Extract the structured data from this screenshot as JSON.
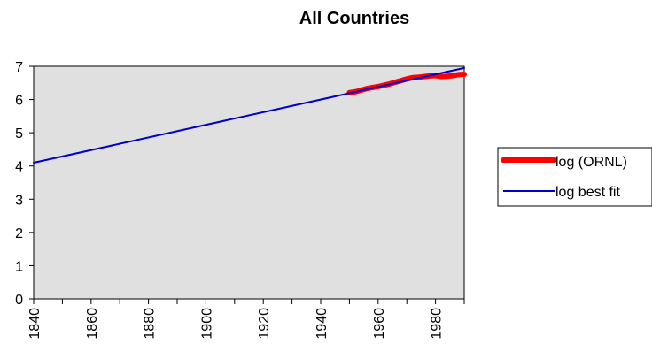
{
  "chart_data": {
    "type": "line",
    "title": "All Countries",
    "xlabel": "",
    "ylabel": "",
    "xlim": [
      1840,
      1990
    ],
    "ylim": [
      0,
      7
    ],
    "x_ticks": [
      1840,
      1860,
      1880,
      1900,
      1920,
      1940,
      1960,
      1980
    ],
    "y_ticks": [
      0,
      1,
      2,
      3,
      4,
      5,
      6,
      7
    ],
    "grid": false,
    "plot_background": "#e0e0e0",
    "legend_position": "right",
    "series": [
      {
        "name": "log (ORNL)",
        "color": "#ff0000",
        "x": [
          1950,
          1952,
          1954,
          1956,
          1958,
          1960,
          1962,
          1964,
          1966,
          1968,
          1970,
          1972,
          1974,
          1976,
          1978,
          1980,
          1982,
          1984,
          1986,
          1988,
          1990
        ],
        "y": [
          6.21,
          6.23,
          6.28,
          6.33,
          6.36,
          6.39,
          6.43,
          6.47,
          6.52,
          6.57,
          6.62,
          6.66,
          6.67,
          6.69,
          6.71,
          6.72,
          6.69,
          6.7,
          6.72,
          6.75,
          6.76
        ]
      },
      {
        "name": "log best fit",
        "color": "#0000cc",
        "x": [
          1840,
          1990
        ],
        "y": [
          4.1,
          6.95
        ]
      }
    ]
  }
}
